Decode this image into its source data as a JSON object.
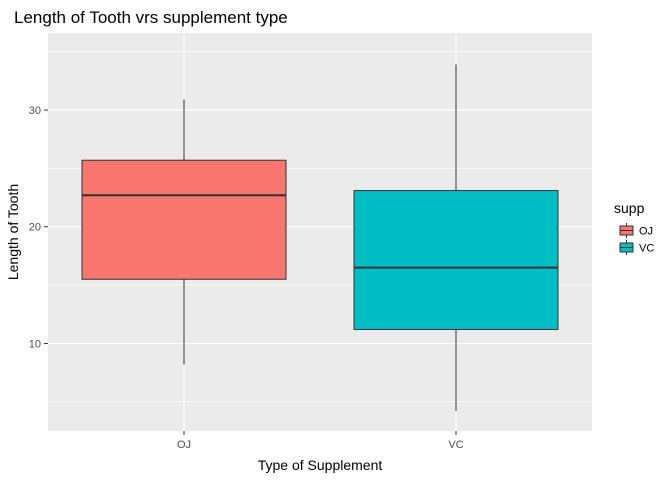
{
  "chart_data": {
    "type": "boxplot",
    "title": "Length of Tooth vrs supplement type",
    "xlabel": "Type of Supplement",
    "ylabel": "Length of Tooth",
    "categories": [
      "OJ",
      "VC"
    ],
    "ylim": [
      2.5,
      36.6
    ],
    "yticks": [
      10,
      20,
      30
    ],
    "grid": true,
    "boxes": [
      {
        "category": "OJ",
        "min": 8.2,
        "q1": 15.5,
        "median": 22.7,
        "q3": 25.7,
        "max": 30.9,
        "color": "#F8766D"
      },
      {
        "category": "VC",
        "min": 4.2,
        "q1": 11.2,
        "median": 16.5,
        "q3": 23.1,
        "max": 33.9,
        "color": "#00BFC4"
      }
    ],
    "legend": {
      "title": "supp",
      "position": "right",
      "entries": [
        {
          "label": "OJ",
          "color": "#F8766D"
        },
        {
          "label": "VC",
          "color": "#00BFC4"
        }
      ]
    },
    "panel_background": "#EBEBEB",
    "grid_color": "#FFFFFF"
  }
}
